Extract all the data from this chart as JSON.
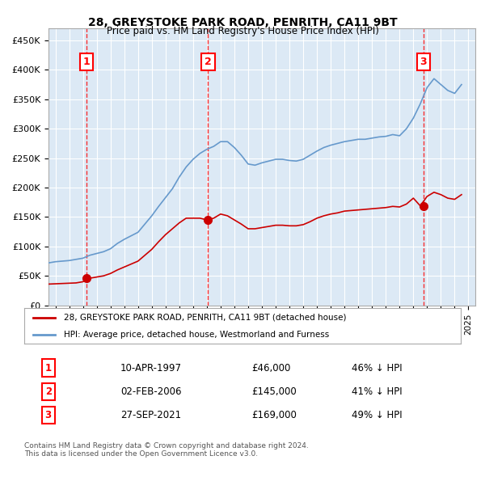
{
  "title": "28, GREYSTOKE PARK ROAD, PENRITH, CA11 9BT",
  "subtitle": "Price paid vs. HM Land Registry's House Price Index (HPI)",
  "ylabel": "",
  "ylim": [
    0,
    470000
  ],
  "yticks": [
    0,
    50000,
    100000,
    150000,
    200000,
    250000,
    300000,
    350000,
    400000,
    450000
  ],
  "xlim_start": 1994.5,
  "xlim_end": 2025.5,
  "bg_color": "#dce9f5",
  "plot_bg": "#dce9f5",
  "grid_color": "#ffffff",
  "sale_color": "#cc0000",
  "hpi_color": "#6699cc",
  "sale_label": "28, GREYSTOKE PARK ROAD, PENRITH, CA11 9BT (detached house)",
  "hpi_label": "HPI: Average price, detached house, Westmorland and Furness",
  "sales": [
    {
      "num": 1,
      "date_dec": 1997.28,
      "price": 46000,
      "label": "1",
      "pct": "46%",
      "dir": "↓"
    },
    {
      "num": 2,
      "date_dec": 2006.09,
      "price": 145000,
      "label": "2",
      "pct": "41%",
      "dir": "↓"
    },
    {
      "num": 3,
      "date_dec": 2021.74,
      "price": 169000,
      "label": "3",
      "pct": "49%",
      "dir": "↓"
    }
  ],
  "table_rows": [
    {
      "num": "1",
      "date": "10-APR-1997",
      "price": "£46,000",
      "pct": "46% ↓ HPI"
    },
    {
      "num": "2",
      "date": "02-FEB-2006",
      "price": "£145,000",
      "pct": "41% ↓ HPI"
    },
    {
      "num": "3",
      "date": "27-SEP-2021",
      "price": "£169,000",
      "pct": "49% ↓ HPI"
    }
  ],
  "footer": "Contains HM Land Registry data © Crown copyright and database right 2024.\nThis data is licensed under the Open Government Licence v3.0.",
  "hpi_data_x": [
    1994.5,
    1995.0,
    1995.5,
    1996.0,
    1996.5,
    1997.0,
    1997.5,
    1998.0,
    1998.5,
    1999.0,
    1999.5,
    2000.0,
    2000.5,
    2001.0,
    2001.5,
    2002.0,
    2002.5,
    2003.0,
    2003.5,
    2004.0,
    2004.5,
    2005.0,
    2005.5,
    2006.0,
    2006.5,
    2007.0,
    2007.5,
    2008.0,
    2008.5,
    2009.0,
    2009.5,
    2010.0,
    2010.5,
    2011.0,
    2011.5,
    2012.0,
    2012.5,
    2013.0,
    2013.5,
    2014.0,
    2014.5,
    2015.0,
    2015.5,
    2016.0,
    2016.5,
    2017.0,
    2017.5,
    2018.0,
    2018.5,
    2019.0,
    2019.5,
    2020.0,
    2020.5,
    2021.0,
    2021.5,
    2022.0,
    2022.5,
    2023.0,
    2023.5,
    2024.0,
    2024.5
  ],
  "hpi_data_y": [
    72000,
    74000,
    75000,
    76000,
    78000,
    80000,
    85000,
    88000,
    91000,
    96000,
    105000,
    112000,
    118000,
    124000,
    138000,
    152000,
    168000,
    183000,
    198000,
    218000,
    235000,
    248000,
    258000,
    265000,
    270000,
    278000,
    278000,
    268000,
    255000,
    240000,
    238000,
    242000,
    245000,
    248000,
    248000,
    246000,
    245000,
    248000,
    255000,
    262000,
    268000,
    272000,
    275000,
    278000,
    280000,
    282000,
    282000,
    284000,
    286000,
    287000,
    290000,
    288000,
    300000,
    318000,
    342000,
    370000,
    385000,
    375000,
    365000,
    360000,
    375000
  ],
  "sale_data_x": [
    1994.5,
    1995.0,
    1995.5,
    1996.0,
    1996.5,
    1997.0,
    1997.5,
    1998.0,
    1998.5,
    1999.0,
    1999.5,
    2000.0,
    2000.5,
    2001.0,
    2001.5,
    2002.0,
    2002.5,
    2003.0,
    2003.5,
    2004.0,
    2004.5,
    2005.0,
    2005.5,
    2006.0,
    2006.5,
    2007.0,
    2007.5,
    2008.0,
    2008.5,
    2009.0,
    2009.5,
    2010.0,
    2010.5,
    2011.0,
    2011.5,
    2012.0,
    2012.5,
    2013.0,
    2013.5,
    2014.0,
    2014.5,
    2015.0,
    2015.5,
    2016.0,
    2016.5,
    2017.0,
    2017.5,
    2018.0,
    2018.5,
    2019.0,
    2019.5,
    2020.0,
    2020.5,
    2021.0,
    2021.5,
    2022.0,
    2022.5,
    2023.0,
    2023.5,
    2024.0,
    2024.5
  ],
  "sale_data_y": [
    36000,
    36500,
    37000,
    37500,
    38000,
    40000,
    46000,
    48000,
    50000,
    54000,
    60000,
    65000,
    70000,
    75000,
    85000,
    95000,
    108000,
    120000,
    130000,
    140000,
    148000,
    148000,
    148000,
    145000,
    148000,
    155000,
    152000,
    145000,
    138000,
    130000,
    130000,
    132000,
    134000,
    136000,
    136000,
    135000,
    135000,
    137000,
    142000,
    148000,
    152000,
    155000,
    157000,
    160000,
    161000,
    162000,
    163000,
    164000,
    165000,
    166000,
    168000,
    167000,
    172000,
    182000,
    169000,
    185000,
    192000,
    188000,
    182000,
    180000,
    188000
  ]
}
